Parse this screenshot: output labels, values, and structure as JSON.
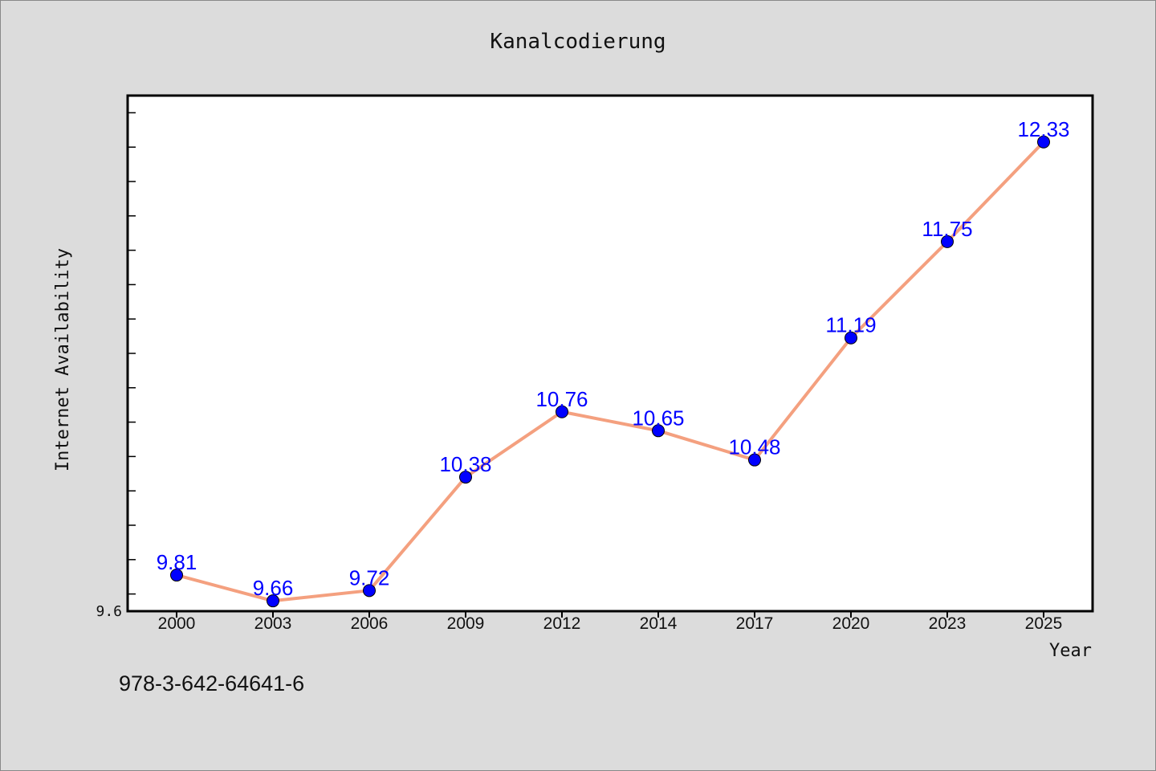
{
  "chart_data": {
    "type": "line",
    "title": "Kanalcodierung",
    "xlabel": "Year",
    "ylabel": "Internet Availability",
    "categories": [
      "2000",
      "2003",
      "2006",
      "2009",
      "2012",
      "2014",
      "2017",
      "2020",
      "2023",
      "2025"
    ],
    "series": [
      {
        "values": [
          9.81,
          9.66,
          9.72,
          10.38,
          10.76,
          10.65,
          10.48,
          11.19,
          11.75,
          12.33
        ]
      }
    ],
    "ylim": [
      9.6,
      12.6
    ],
    "ytick_labels": [
      "9.6"
    ],
    "grid": false,
    "line_color": "#f4a07f",
    "marker_color": "#0000ff",
    "label_color": "#0000ff"
  },
  "footnote": "978-3-642-64641-6"
}
